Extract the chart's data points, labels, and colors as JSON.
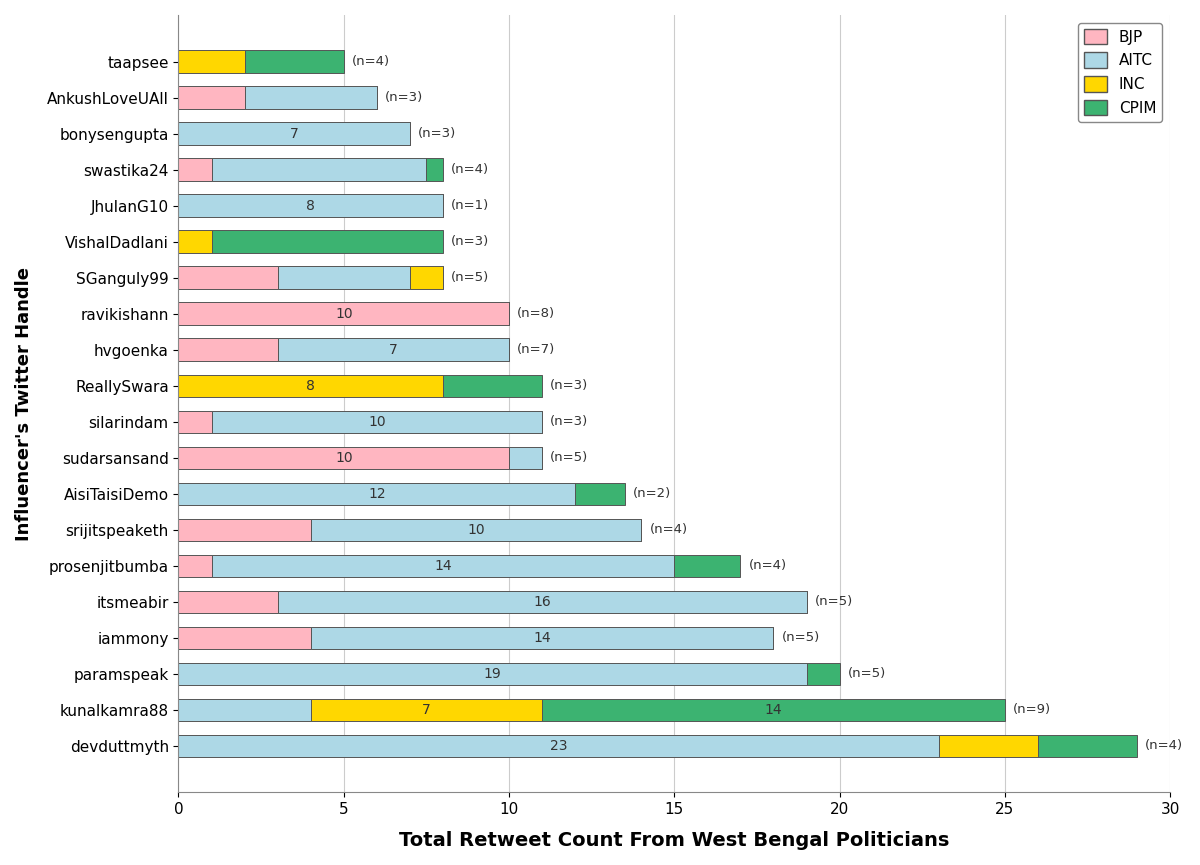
{
  "handles": [
    "devduttmyth",
    "kunalkamra88",
    "paramspeak",
    "iammony",
    "itsmeabir",
    "prosenjitbumba",
    "srijitspeaketh",
    "AisiTaisiDemo",
    "sudarsansand",
    "silarindam",
    "ReallySwara",
    "hvgoenka",
    "ravikishann",
    "SGanguly99",
    "VishalDadlani",
    "JhulanG10",
    "swastika24",
    "bonysengupta",
    "AnkushLoveUAll",
    "taapsee"
  ],
  "n_labels": [
    4,
    9,
    5,
    5,
    5,
    4,
    4,
    2,
    5,
    3,
    3,
    7,
    8,
    5,
    3,
    1,
    4,
    3,
    3,
    4
  ],
  "BJP": [
    0,
    0,
    0,
    4,
    3,
    1,
    4,
    0,
    10,
    1,
    0,
    3,
    10,
    3,
    0,
    0,
    1,
    0,
    2,
    0
  ],
  "AITC": [
    23,
    4,
    19,
    14,
    16,
    14,
    10,
    12,
    1,
    10,
    0,
    7,
    0,
    4,
    0,
    8,
    6.5,
    7,
    4,
    0
  ],
  "INC": [
    3,
    7,
    0,
    0,
    0,
    0,
    0,
    0,
    0,
    0,
    8,
    0,
    0,
    1,
    1,
    0,
    0,
    0,
    0,
    2
  ],
  "CPIM": [
    3,
    14,
    1,
    0,
    0,
    2,
    0,
    1.5,
    0,
    0,
    3,
    0,
    0,
    0,
    7,
    0,
    0.5,
    0,
    0,
    3
  ],
  "colors": {
    "BJP": "#FFB6C1",
    "AITC": "#ADD8E6",
    "INC": "#FFD700",
    "CPIM": "#3CB371"
  },
  "bar_labels": {
    "bonysengupta_AITC": 7,
    "JhulanG10_AITC": 8,
    "ravikishann_BJP": 10,
    "hvgoenka_AITC": 7,
    "ReallySwara_INC": 8,
    "silarindam_AITC": 10,
    "sudarsansand_BJP": 10,
    "AisiTaisiDemo_AITC": 12,
    "srijitspeaketh_AITC": 10,
    "prosenjitbumba_AITC": 14,
    "itsmeabir_AITC": 16,
    "iammony_AITC": 14,
    "paramspeak_AITC": 19,
    "kunalkamra88_INC": 7,
    "kunalkamra88_CPIM": 14,
    "devduttmyth_AITC": 23
  },
  "xlabel": "Total Retweet Count From West Bengal Politicians",
  "ylabel": "Influencer's Twitter Handle",
  "xlim": [
    0,
    30
  ],
  "xticks": [
    0,
    5,
    10,
    15,
    20,
    25,
    30
  ],
  "background_color": "#ffffff",
  "edge_color": "#555555"
}
